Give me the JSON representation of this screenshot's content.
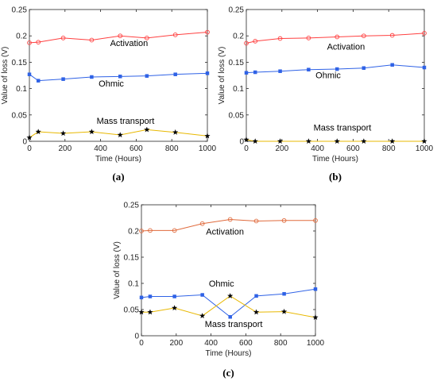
{
  "chart_data": [
    {
      "type": "line",
      "caption": "(a)",
      "xlabel": "Time (Hours)",
      "ylabel": "Value of loss (V)",
      "xlim": [
        0,
        1000
      ],
      "ylim": [
        0,
        0.25
      ],
      "xticks": [
        0,
        200,
        400,
        600,
        800,
        1000
      ],
      "yticks": [
        0,
        0.05,
        0.1,
        0.15,
        0.2,
        0.25
      ],
      "x": [
        0,
        50,
        190,
        350,
        510,
        660,
        820,
        1000
      ],
      "series": [
        {
          "name": "Activation",
          "marker": "circle",
          "color": "#ff4040",
          "values": [
            0.187,
            0.188,
            0.196,
            0.192,
            0.2,
            0.196,
            0.202,
            0.207
          ]
        },
        {
          "name": "Ohmic",
          "marker": "square",
          "color": "#2f62e6",
          "values": [
            0.127,
            0.115,
            0.118,
            0.122,
            0.123,
            0.124,
            0.127,
            0.129
          ]
        },
        {
          "name": "Mass transport",
          "marker": "star",
          "color": "#e8b800",
          "values": [
            0.007,
            0.018,
            0.015,
            0.018,
            0.012,
            0.022,
            0.017,
            0.01
          ]
        }
      ],
      "annotations": [
        {
          "text": "Activation",
          "x": 560,
          "y": 0.181
        },
        {
          "text": "Ohmic",
          "x": 460,
          "y": 0.104
        },
        {
          "text": "Mass transport",
          "x": 540,
          "y": 0.033
        }
      ]
    },
    {
      "type": "line",
      "caption": "(b)",
      "xlabel": "Time (Hours)",
      "ylabel": "Value of loss (V)",
      "xlim": [
        0,
        1000
      ],
      "ylim": [
        0,
        0.25
      ],
      "xticks": [
        0,
        200,
        400,
        600,
        800,
        1000
      ],
      "yticks": [
        0,
        0.05,
        0.1,
        0.15,
        0.2,
        0.25
      ],
      "x": [
        0,
        50,
        190,
        350,
        510,
        660,
        820,
        1000
      ],
      "series": [
        {
          "name": "Activation",
          "marker": "circle",
          "color": "#ff4040",
          "values": [
            0.186,
            0.19,
            0.195,
            0.196,
            0.198,
            0.2,
            0.201,
            0.205
          ]
        },
        {
          "name": "Ohmic",
          "marker": "square",
          "color": "#2f62e6",
          "values": [
            0.13,
            0.131,
            0.133,
            0.136,
            0.137,
            0.139,
            0.145,
            0.14
          ]
        },
        {
          "name": "Mass transport",
          "marker": "star",
          "color": "#e8b800",
          "values": [
            0.003,
            0.0,
            0.0,
            0.0,
            0.0,
            0.0,
            0.0,
            0.0
          ]
        }
      ],
      "annotations": [
        {
          "text": "Activation",
          "x": 560,
          "y": 0.174
        },
        {
          "text": "Ohmic",
          "x": 460,
          "y": 0.12
        },
        {
          "text": "Mass transport",
          "x": 540,
          "y": 0.02
        }
      ]
    },
    {
      "type": "line",
      "caption": "(c)",
      "xlabel": "Time (Hours)",
      "ylabel": "Value of loss (V)",
      "xlim": [
        0,
        1000
      ],
      "ylim": [
        0,
        0.25
      ],
      "xticks": [
        0,
        200,
        400,
        600,
        800,
        1000
      ],
      "yticks": [
        0,
        0.05,
        0.1,
        0.15,
        0.2,
        0.25
      ],
      "x": [
        0,
        50,
        190,
        350,
        510,
        660,
        820,
        1000
      ],
      "series": [
        {
          "name": "Activation",
          "marker": "circle",
          "color": "#e06a3c",
          "values": [
            0.2,
            0.201,
            0.201,
            0.214,
            0.222,
            0.219,
            0.22,
            0.22
          ]
        },
        {
          "name": "Ohmic",
          "marker": "square",
          "color": "#2f62e6",
          "values": [
            0.073,
            0.075,
            0.075,
            0.078,
            0.036,
            0.076,
            0.08,
            0.089
          ]
        },
        {
          "name": "Mass transport",
          "marker": "star",
          "color": "#e8b800",
          "values": [
            0.045,
            0.045,
            0.053,
            0.038,
            0.076,
            0.045,
            0.046,
            0.035
          ]
        }
      ],
      "annotations": [
        {
          "text": "Activation",
          "x": 480,
          "y": 0.193
        },
        {
          "text": "Ohmic",
          "x": 460,
          "y": 0.094
        },
        {
          "text": "Mass transport",
          "x": 530,
          "y": 0.017
        }
      ]
    }
  ]
}
